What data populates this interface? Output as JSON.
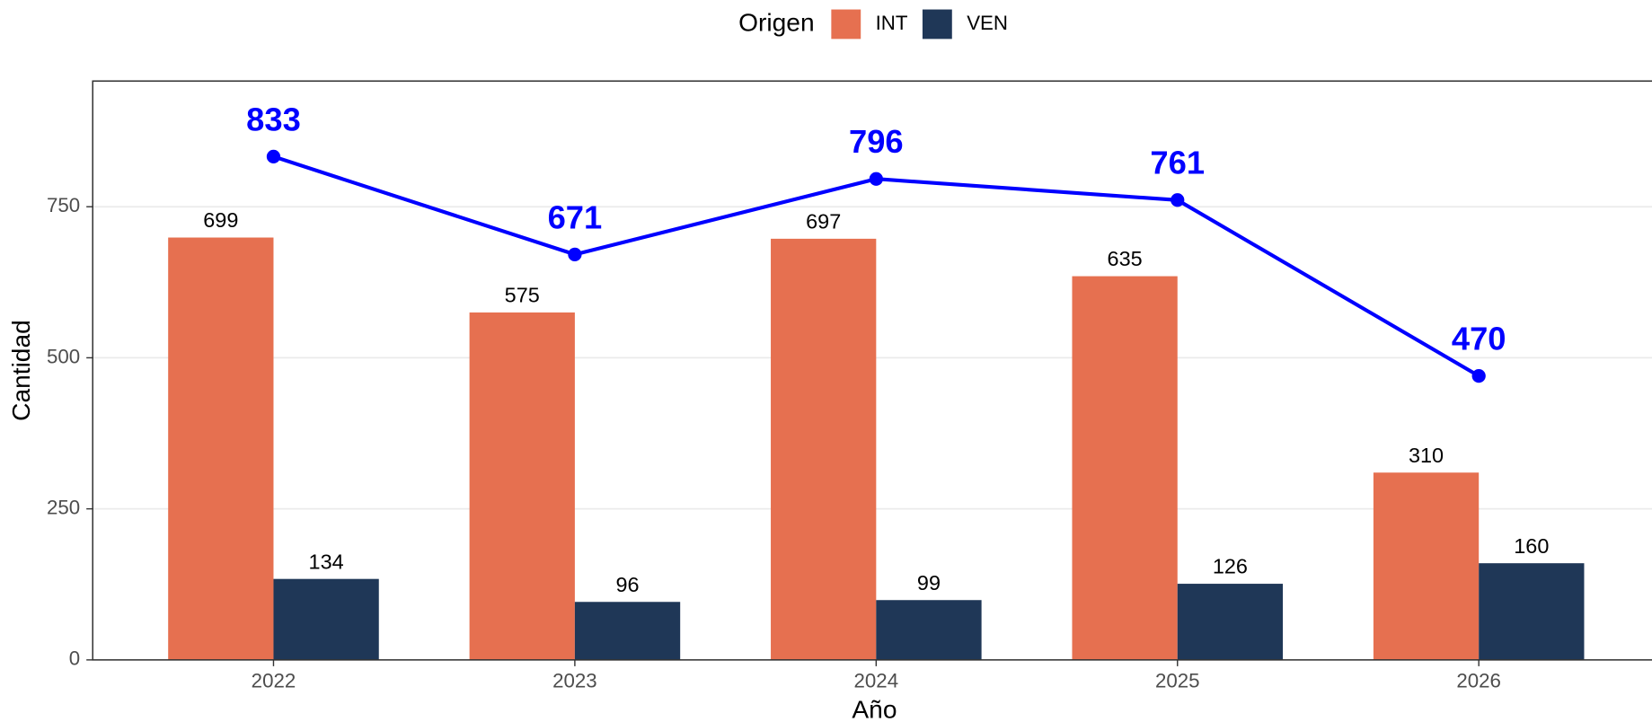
{
  "chart_data": {
    "type": "bar",
    "x_label": "Año",
    "y_label": "Cantidad",
    "legend_title": "Origen",
    "categories": [
      "2022",
      "2023",
      "2024",
      "2025",
      "2026"
    ],
    "series": [
      {
        "name": "INT",
        "color": "#e67050",
        "values": [
          699,
          575,
          697,
          635,
          310
        ]
      },
      {
        "name": "VEN",
        "color": "#1f3757",
        "values": [
          134,
          96,
          99,
          126,
          160
        ]
      }
    ],
    "line": {
      "color": "#0000ff",
      "values": [
        833,
        671,
        796,
        761,
        470
      ]
    },
    "ylim": [
      0,
      958
    ],
    "yticks": [
      0,
      250,
      500,
      750
    ],
    "grid": true,
    "legend": "top"
  }
}
